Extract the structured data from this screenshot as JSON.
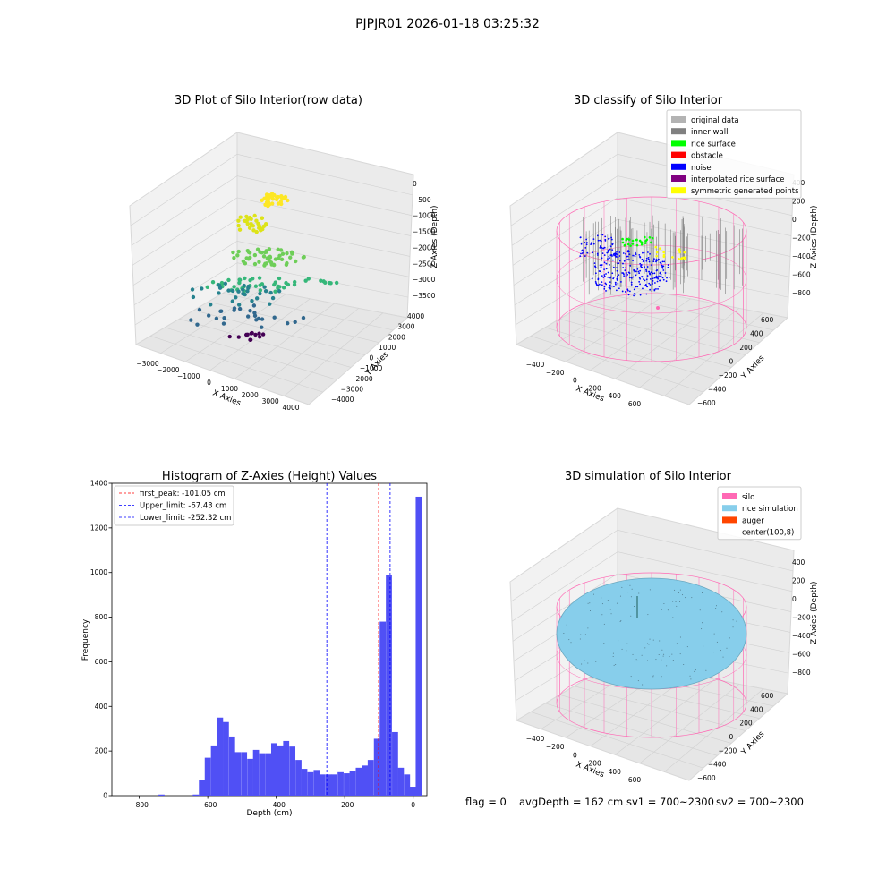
{
  "suptitle": "PJPJR01 2026-01-18 03:25:32",
  "footer": {
    "flag": "flag = 0",
    "avg_depth": "avgDepth = 162 cm",
    "sv1": "sv1 = 700~2300",
    "sv2": "sv2 = 700~2300"
  },
  "colors": {
    "original": "#b3b3b3",
    "inner_wall": "#808080",
    "rice_surface": "#00ff00",
    "obstacle": "#ff0000",
    "noise": "#0000ff",
    "interpolated": "#800080",
    "symmetric": "#ffff00",
    "silo": "#ff69b4",
    "rice_sim": "#87ceeb",
    "auger": "#ff4500",
    "hist_bar": "#5050f5",
    "peak_line": "#ff0000",
    "limit_line": "#0000ff"
  },
  "chart_data": [
    {
      "type": "scatter",
      "title": "3D Plot of Silo Interior(row data)",
      "xlabel": "X Axies",
      "ylabel": "Y Axies",
      "zlabel": "Z Axies (Depth)",
      "x_ticks": [
        "−3000",
        "−2000",
        "−1000",
        "0",
        "1000",
        "2000",
        "3000",
        "4000"
      ],
      "y_ticks": [
        "−4000",
        "−3000",
        "−2000",
        "−1000",
        "0",
        "1000",
        "2000",
        "3000",
        "4000"
      ],
      "z_ticks": [
        "0",
        "−500",
        "−1000",
        "−1500",
        "−2000",
        "−2500",
        "−3000",
        "−3500"
      ],
      "colormap": "viridis"
    },
    {
      "type": "scatter",
      "title": "3D classify of Silo Interior",
      "xlabel": "X Axies",
      "ylabel": "Y Axies",
      "zlabel": "Z Axies (Depth)",
      "x_ticks": [
        "−400",
        "−200",
        "0",
        "200",
        "400",
        "600"
      ],
      "y_ticks": [
        "−600",
        "−400",
        "−200",
        "0",
        "200",
        "400",
        "600"
      ],
      "z_ticks": [
        "400",
        "200",
        "0",
        "−200",
        "−400",
        "−600",
        "−800"
      ],
      "legend_position": "top-right",
      "legend": [
        {
          "label": "original data",
          "color": "#b3b3b3"
        },
        {
          "label": "inner wall",
          "color": "#808080"
        },
        {
          "label": "rice surface",
          "color": "#00ff00"
        },
        {
          "label": "obstacle",
          "color": "#ff0000"
        },
        {
          "label": "noise",
          "color": "#0000ff"
        },
        {
          "label": "interpolated rice surface",
          "color": "#800080"
        },
        {
          "label": "symmetric generated points",
          "color": "#ffff00"
        }
      ]
    },
    {
      "type": "bar",
      "title": "Histogram of Z-Axies (Height) Values",
      "xlabel": "Depth (cm)",
      "ylabel": "Frequency",
      "xlim": [
        -880,
        40
      ],
      "ylim": [
        0,
        1400
      ],
      "x_ticks": [
        -800,
        -600,
        -400,
        -200,
        0
      ],
      "y_ticks": [
        0,
        200,
        400,
        600,
        800,
        1000,
        1200,
        1400
      ],
      "bin_width": 17.6,
      "bins": [
        {
          "x": -735,
          "y": 5
        },
        {
          "x": -635,
          "y": 5
        },
        {
          "x": -617,
          "y": 70
        },
        {
          "x": -600,
          "y": 170
        },
        {
          "x": -582,
          "y": 225
        },
        {
          "x": -564,
          "y": 350
        },
        {
          "x": -547,
          "y": 330
        },
        {
          "x": -529,
          "y": 265
        },
        {
          "x": -512,
          "y": 195
        },
        {
          "x": -494,
          "y": 195
        },
        {
          "x": -476,
          "y": 165
        },
        {
          "x": -459,
          "y": 205
        },
        {
          "x": -441,
          "y": 190
        },
        {
          "x": -423,
          "y": 190
        },
        {
          "x": -406,
          "y": 235
        },
        {
          "x": -388,
          "y": 225
        },
        {
          "x": -371,
          "y": 245
        },
        {
          "x": -353,
          "y": 220
        },
        {
          "x": -335,
          "y": 160
        },
        {
          "x": -318,
          "y": 120
        },
        {
          "x": -300,
          "y": 105
        },
        {
          "x": -282,
          "y": 115
        },
        {
          "x": -265,
          "y": 95
        },
        {
          "x": -247,
          "y": 95
        },
        {
          "x": -230,
          "y": 95
        },
        {
          "x": -212,
          "y": 105
        },
        {
          "x": -194,
          "y": 100
        },
        {
          "x": -177,
          "y": 110
        },
        {
          "x": -159,
          "y": 125
        },
        {
          "x": -141,
          "y": 135
        },
        {
          "x": -124,
          "y": 160
        },
        {
          "x": -106,
          "y": 255
        },
        {
          "x": -89,
          "y": 780
        },
        {
          "x": -71,
          "y": 990
        },
        {
          "x": -53,
          "y": 285
        },
        {
          "x": -36,
          "y": 125
        },
        {
          "x": -18,
          "y": 95
        },
        {
          "x": -1,
          "y": 40
        },
        {
          "x": 16,
          "y": 1340
        }
      ],
      "legend_position": "top-left",
      "vlines": [
        {
          "label": "first_peak: -101.05 cm",
          "x": -101.05,
          "color": "#ff0000"
        },
        {
          "label": "Upper_limit: -67.43 cm",
          "x": -67.43,
          "color": "#0000ff"
        },
        {
          "label": "Lower_limit: -252.32 cm",
          "x": -252.32,
          "color": "#0000ff"
        }
      ]
    },
    {
      "type": "scatter",
      "title": "3D simulation of Silo Interior",
      "xlabel": "X Axies",
      "ylabel": "Y Axies",
      "zlabel": "Z Axies (Depth)",
      "x_ticks": [
        "−400",
        "−200",
        "0",
        "200",
        "400",
        "600"
      ],
      "y_ticks": [
        "−600",
        "−400",
        "−200",
        "0",
        "200",
        "400",
        "600"
      ],
      "z_ticks": [
        "400",
        "200",
        "0",
        "−200",
        "−400",
        "−600",
        "−800"
      ],
      "legend_position": "top-right",
      "legend": [
        {
          "label": "silo",
          "color": "#ff69b4"
        },
        {
          "label": "rice simulation",
          "color": "#87ceeb"
        },
        {
          "label": "auger",
          "color": "#ff4500"
        },
        {
          "label": "center(100,8)",
          "color": ""
        }
      ]
    }
  ]
}
